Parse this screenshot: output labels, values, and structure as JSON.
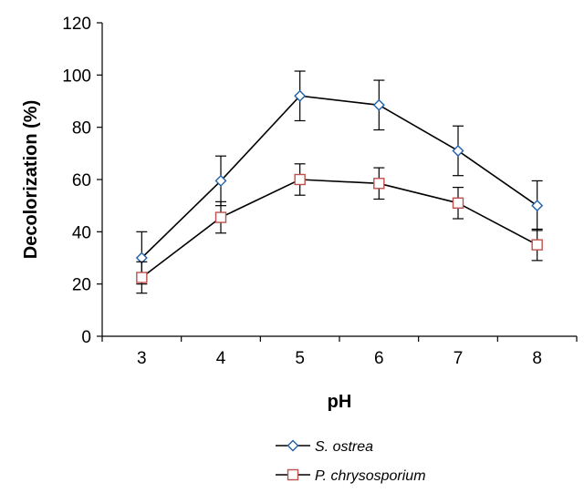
{
  "chart_data": {
    "type": "line",
    "title": "",
    "xlabel": "pH",
    "ylabel": "Decolorization (%)",
    "categories": [
      "3",
      "4",
      "5",
      "6",
      "7",
      "8"
    ],
    "ylim": [
      0,
      120
    ],
    "yticks": [
      "0",
      "20",
      "40",
      "60",
      "80",
      "100",
      "120"
    ],
    "grid": false,
    "legend_position": "bottom",
    "series": [
      {
        "name": "S. ostrea",
        "marker": "diamond",
        "color": "#1f5fa8",
        "values": [
          30,
          59.5,
          92,
          88.5,
          71,
          50
        ],
        "error": [
          10,
          9.5,
          9.5,
          9.5,
          9.5,
          9.5
        ]
      },
      {
        "name": "P. chrysosporium",
        "marker": "square",
        "color": "#c0504d",
        "values": [
          22.5,
          45.5,
          60,
          58.5,
          51,
          35
        ],
        "error": [
          6,
          6,
          6,
          6,
          6,
          6
        ]
      }
    ]
  }
}
